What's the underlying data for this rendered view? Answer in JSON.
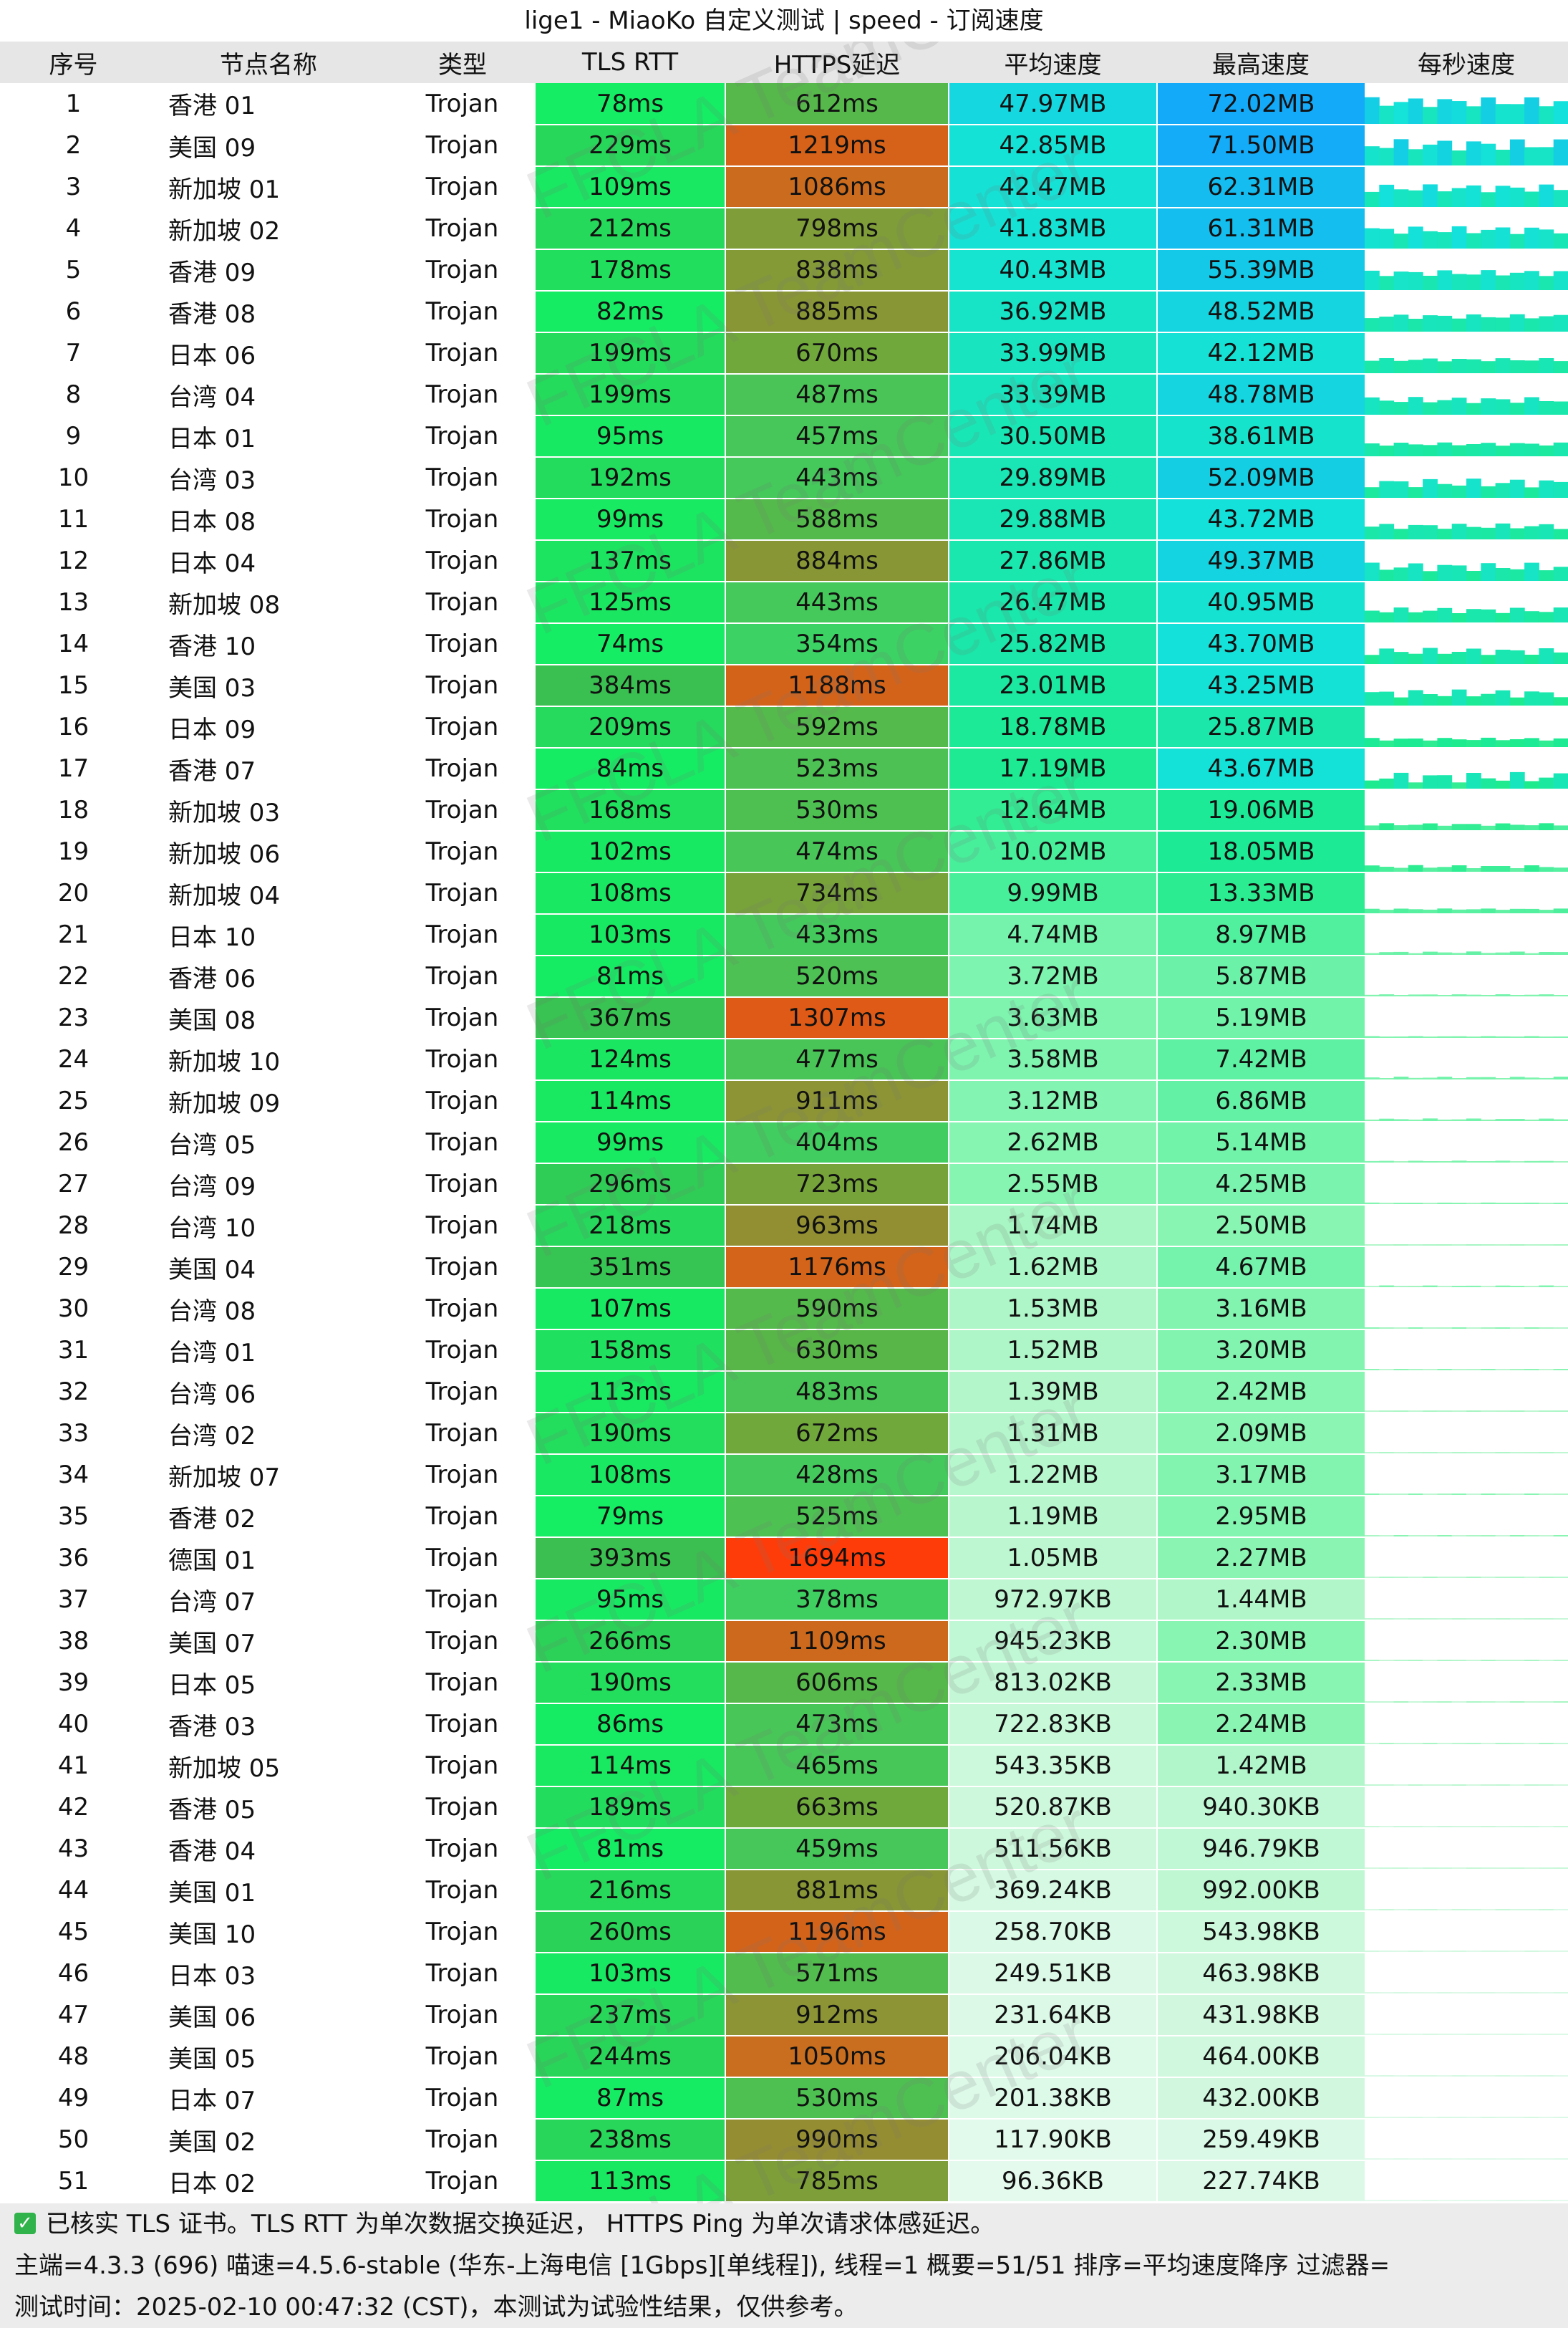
{
  "title": "lige1 - MiaoKo 自定义测试 | speed - 订阅速度",
  "watermark": "FFCLA TeamCenter",
  "columns": [
    "序号",
    "节点名称",
    "类型",
    "TLS RTT",
    "HTTPS延迟",
    "平均速度",
    "最高速度",
    "每秒速度"
  ],
  "rows": [
    {
      "idx": "1",
      "name": "香港 01",
      "type": "Trojan",
      "tls": "78ms",
      "https": "612ms",
      "avg": "47.97MB",
      "max": "72.02MB"
    },
    {
      "idx": "2",
      "name": "美国 09",
      "type": "Trojan",
      "tls": "229ms",
      "https": "1219ms",
      "avg": "42.85MB",
      "max": "71.50MB"
    },
    {
      "idx": "3",
      "name": "新加坡 01",
      "type": "Trojan",
      "tls": "109ms",
      "https": "1086ms",
      "avg": "42.47MB",
      "max": "62.31MB"
    },
    {
      "idx": "4",
      "name": "新加坡 02",
      "type": "Trojan",
      "tls": "212ms",
      "https": "798ms",
      "avg": "41.83MB",
      "max": "61.31MB"
    },
    {
      "idx": "5",
      "name": "香港 09",
      "type": "Trojan",
      "tls": "178ms",
      "https": "838ms",
      "avg": "40.43MB",
      "max": "55.39MB"
    },
    {
      "idx": "6",
      "name": "香港 08",
      "type": "Trojan",
      "tls": "82ms",
      "https": "885ms",
      "avg": "36.92MB",
      "max": "48.52MB"
    },
    {
      "idx": "7",
      "name": "日本 06",
      "type": "Trojan",
      "tls": "199ms",
      "https": "670ms",
      "avg": "33.99MB",
      "max": "42.12MB"
    },
    {
      "idx": "8",
      "name": "台湾 04",
      "type": "Trojan",
      "tls": "199ms",
      "https": "487ms",
      "avg": "33.39MB",
      "max": "48.78MB"
    },
    {
      "idx": "9",
      "name": "日本 01",
      "type": "Trojan",
      "tls": "95ms",
      "https": "457ms",
      "avg": "30.50MB",
      "max": "38.61MB"
    },
    {
      "idx": "10",
      "name": "台湾 03",
      "type": "Trojan",
      "tls": "192ms",
      "https": "443ms",
      "avg": "29.89MB",
      "max": "52.09MB"
    },
    {
      "idx": "11",
      "name": "日本 08",
      "type": "Trojan",
      "tls": "99ms",
      "https": "588ms",
      "avg": "29.88MB",
      "max": "43.72MB"
    },
    {
      "idx": "12",
      "name": "日本 04",
      "type": "Trojan",
      "tls": "137ms",
      "https": "884ms",
      "avg": "27.86MB",
      "max": "49.37MB"
    },
    {
      "idx": "13",
      "name": "新加坡 08",
      "type": "Trojan",
      "tls": "125ms",
      "https": "443ms",
      "avg": "26.47MB",
      "max": "40.95MB"
    },
    {
      "idx": "14",
      "name": "香港 10",
      "type": "Trojan",
      "tls": "74ms",
      "https": "354ms",
      "avg": "25.82MB",
      "max": "43.70MB"
    },
    {
      "idx": "15",
      "name": "美国 03",
      "type": "Trojan",
      "tls": "384ms",
      "https": "1188ms",
      "avg": "23.01MB",
      "max": "43.25MB"
    },
    {
      "idx": "16",
      "name": "日本 09",
      "type": "Trojan",
      "tls": "209ms",
      "https": "592ms",
      "avg": "18.78MB",
      "max": "25.87MB"
    },
    {
      "idx": "17",
      "name": "香港 07",
      "type": "Trojan",
      "tls": "84ms",
      "https": "523ms",
      "avg": "17.19MB",
      "max": "43.67MB"
    },
    {
      "idx": "18",
      "name": "新加坡 03",
      "type": "Trojan",
      "tls": "168ms",
      "https": "530ms",
      "avg": "12.64MB",
      "max": "19.06MB"
    },
    {
      "idx": "19",
      "name": "新加坡 06",
      "type": "Trojan",
      "tls": "102ms",
      "https": "474ms",
      "avg": "10.02MB",
      "max": "18.05MB"
    },
    {
      "idx": "20",
      "name": "新加坡 04",
      "type": "Trojan",
      "tls": "108ms",
      "https": "734ms",
      "avg": "9.99MB",
      "max": "13.33MB"
    },
    {
      "idx": "21",
      "name": "日本 10",
      "type": "Trojan",
      "tls": "103ms",
      "https": "433ms",
      "avg": "4.74MB",
      "max": "8.97MB"
    },
    {
      "idx": "22",
      "name": "香港 06",
      "type": "Trojan",
      "tls": "81ms",
      "https": "520ms",
      "avg": "3.72MB",
      "max": "5.87MB"
    },
    {
      "idx": "23",
      "name": "美国 08",
      "type": "Trojan",
      "tls": "367ms",
      "https": "1307ms",
      "avg": "3.63MB",
      "max": "5.19MB"
    },
    {
      "idx": "24",
      "name": "新加坡 10",
      "type": "Trojan",
      "tls": "124ms",
      "https": "477ms",
      "avg": "3.58MB",
      "max": "7.42MB"
    },
    {
      "idx": "25",
      "name": "新加坡 09",
      "type": "Trojan",
      "tls": "114ms",
      "https": "911ms",
      "avg": "3.12MB",
      "max": "6.86MB"
    },
    {
      "idx": "26",
      "name": "台湾 05",
      "type": "Trojan",
      "tls": "99ms",
      "https": "404ms",
      "avg": "2.62MB",
      "max": "5.14MB"
    },
    {
      "idx": "27",
      "name": "台湾 09",
      "type": "Trojan",
      "tls": "296ms",
      "https": "723ms",
      "avg": "2.55MB",
      "max": "4.25MB"
    },
    {
      "idx": "28",
      "name": "台湾 10",
      "type": "Trojan",
      "tls": "218ms",
      "https": "963ms",
      "avg": "1.74MB",
      "max": "2.50MB"
    },
    {
      "idx": "29",
      "name": "美国 04",
      "type": "Trojan",
      "tls": "351ms",
      "https": "1176ms",
      "avg": "1.62MB",
      "max": "4.67MB"
    },
    {
      "idx": "30",
      "name": "台湾 08",
      "type": "Trojan",
      "tls": "107ms",
      "https": "590ms",
      "avg": "1.53MB",
      "max": "3.16MB"
    },
    {
      "idx": "31",
      "name": "台湾 01",
      "type": "Trojan",
      "tls": "158ms",
      "https": "630ms",
      "avg": "1.52MB",
      "max": "3.20MB"
    },
    {
      "idx": "32",
      "name": "台湾 06",
      "type": "Trojan",
      "tls": "113ms",
      "https": "483ms",
      "avg": "1.39MB",
      "max": "2.42MB"
    },
    {
      "idx": "33",
      "name": "台湾 02",
      "type": "Trojan",
      "tls": "190ms",
      "https": "672ms",
      "avg": "1.31MB",
      "max": "2.09MB"
    },
    {
      "idx": "34",
      "name": "新加坡 07",
      "type": "Trojan",
      "tls": "108ms",
      "https": "428ms",
      "avg": "1.22MB",
      "max": "3.17MB"
    },
    {
      "idx": "35",
      "name": "香港 02",
      "type": "Trojan",
      "tls": "79ms",
      "https": "525ms",
      "avg": "1.19MB",
      "max": "2.95MB"
    },
    {
      "idx": "36",
      "name": "德国 01",
      "type": "Trojan",
      "tls": "393ms",
      "https": "1694ms",
      "avg": "1.05MB",
      "max": "2.27MB"
    },
    {
      "idx": "37",
      "name": "台湾 07",
      "type": "Trojan",
      "tls": "95ms",
      "https": "378ms",
      "avg": "972.97KB",
      "max": "1.44MB"
    },
    {
      "idx": "38",
      "name": "美国 07",
      "type": "Trojan",
      "tls": "266ms",
      "https": "1109ms",
      "avg": "945.23KB",
      "max": "2.30MB"
    },
    {
      "idx": "39",
      "name": "日本 05",
      "type": "Trojan",
      "tls": "190ms",
      "https": "606ms",
      "avg": "813.02KB",
      "max": "2.33MB"
    },
    {
      "idx": "40",
      "name": "香港 03",
      "type": "Trojan",
      "tls": "86ms",
      "https": "473ms",
      "avg": "722.83KB",
      "max": "2.24MB"
    },
    {
      "idx": "41",
      "name": "新加坡 05",
      "type": "Trojan",
      "tls": "114ms",
      "https": "465ms",
      "avg": "543.35KB",
      "max": "1.42MB"
    },
    {
      "idx": "42",
      "name": "香港 05",
      "type": "Trojan",
      "tls": "189ms",
      "https": "663ms",
      "avg": "520.87KB",
      "max": "940.30KB"
    },
    {
      "idx": "43",
      "name": "香港 04",
      "type": "Trojan",
      "tls": "81ms",
      "https": "459ms",
      "avg": "511.56KB",
      "max": "946.79KB"
    },
    {
      "idx": "44",
      "name": "美国 01",
      "type": "Trojan",
      "tls": "216ms",
      "https": "881ms",
      "avg": "369.24KB",
      "max": "992.00KB"
    },
    {
      "idx": "45",
      "name": "美国 10",
      "type": "Trojan",
      "tls": "260ms",
      "https": "1196ms",
      "avg": "258.70KB",
      "max": "543.98KB"
    },
    {
      "idx": "46",
      "name": "日本 03",
      "type": "Trojan",
      "tls": "103ms",
      "https": "571ms",
      "avg": "249.51KB",
      "max": "463.98KB"
    },
    {
      "idx": "47",
      "name": "美国 06",
      "type": "Trojan",
      "tls": "237ms",
      "https": "912ms",
      "avg": "231.64KB",
      "max": "431.98KB"
    },
    {
      "idx": "48",
      "name": "美国 05",
      "type": "Trojan",
      "tls": "244ms",
      "https": "1050ms",
      "avg": "206.04KB",
      "max": "464.00KB"
    },
    {
      "idx": "49",
      "name": "日本 07",
      "type": "Trojan",
      "tls": "87ms",
      "https": "530ms",
      "avg": "201.38KB",
      "max": "432.00KB"
    },
    {
      "idx": "50",
      "name": "美国 02",
      "type": "Trojan",
      "tls": "238ms",
      "https": "990ms",
      "avg": "117.90KB",
      "max": "259.49KB"
    },
    {
      "idx": "51",
      "name": "日本 02",
      "type": "Trojan",
      "tls": "113ms",
      "https": "785ms",
      "avg": "96.36KB",
      "max": "227.74KB"
    }
  ],
  "footer": {
    "check_icon": "check-icon",
    "line1": "已核实 TLS 证书。TLS RTT 为单次数据交换延迟， HTTPS Ping 为单次请求体感延迟。",
    "line2": "主端=4.3.3 (696) 喵速=4.5.6-stable (华东-上海电信 [1Gbps][单线程]), 线程=1 概要=51/51 排序=平均速度降序 过滤器=",
    "line3": "测试时间：2025-02-10 00:47:32 (CST)，本测试为试验性结果，仅供参考。"
  },
  "colors": {
    "header_bg": "#e6e6e6",
    "footer_bg": "#ececec",
    "accent_green": "#2fb34a"
  }
}
